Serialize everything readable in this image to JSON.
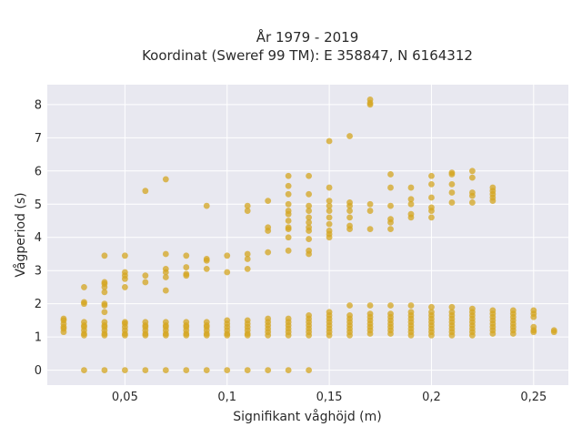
{
  "chart_data": {
    "type": "scatter",
    "title": "År 1979 - 2019",
    "subtitle": "Koordinat (Sweref 99 TM): E 358847, N 6164312",
    "xlabel": "Signifikant våghöjd (m)",
    "ylabel": "Vågperiod (s)",
    "xlim": [
      0.012,
      0.267
    ],
    "ylim": [
      -0.45,
      8.6
    ],
    "x_ticks": [
      0.05,
      0.1,
      0.15,
      0.2,
      0.25
    ],
    "x_tick_labels": [
      "0,05",
      "0,1",
      "0,15",
      "0,2",
      "0,25"
    ],
    "y_ticks": [
      0,
      1,
      2,
      3,
      4,
      5,
      6,
      7,
      8
    ],
    "y_tick_labels": [
      "0",
      "1",
      "2",
      "3",
      "4",
      "5",
      "6",
      "7",
      "8"
    ],
    "grid": true,
    "background": "#e8e8f0",
    "marker_color": "#d4a520",
    "series": [
      {
        "points": [
          [
            0.02,
            1.55
          ],
          [
            0.02,
            1.5
          ],
          [
            0.02,
            1.4
          ],
          [
            0.02,
            1.3
          ],
          [
            0.02,
            1.25
          ],
          [
            0.02,
            1.15
          ],
          [
            0.03,
            1.45
          ],
          [
            0.03,
            1.35
          ],
          [
            0.03,
            1.3
          ],
          [
            0.03,
            1.2
          ],
          [
            0.03,
            1.1
          ],
          [
            0.03,
            1.05
          ],
          [
            0.03,
            2.05
          ],
          [
            0.03,
            2.0
          ],
          [
            0.03,
            2.5
          ],
          [
            0.03,
            0
          ],
          [
            0.04,
            1.45
          ],
          [
            0.04,
            1.35
          ],
          [
            0.04,
            1.3
          ],
          [
            0.04,
            1.2
          ],
          [
            0.04,
            1.1
          ],
          [
            0.04,
            1.05
          ],
          [
            0.04,
            1.95
          ],
          [
            0.04,
            2.0
          ],
          [
            0.04,
            1.75
          ],
          [
            0.04,
            2.5
          ],
          [
            0.04,
            2.6
          ],
          [
            0.04,
            2.65
          ],
          [
            0.04,
            2.35
          ],
          [
            0.04,
            3.45
          ],
          [
            0.04,
            0
          ],
          [
            0.05,
            1.45
          ],
          [
            0.05,
            1.4
          ],
          [
            0.05,
            1.3
          ],
          [
            0.05,
            1.2
          ],
          [
            0.05,
            1.1
          ],
          [
            0.05,
            1.05
          ],
          [
            0.05,
            2.5
          ],
          [
            0.05,
            2.75
          ],
          [
            0.05,
            2.85
          ],
          [
            0.05,
            2.95
          ],
          [
            0.05,
            3.45
          ],
          [
            0.05,
            0
          ],
          [
            0.06,
            1.45
          ],
          [
            0.06,
            1.35
          ],
          [
            0.06,
            1.3
          ],
          [
            0.06,
            1.2
          ],
          [
            0.06,
            1.1
          ],
          [
            0.06,
            1.05
          ],
          [
            0.06,
            2.65
          ],
          [
            0.06,
            2.85
          ],
          [
            0.06,
            5.4
          ],
          [
            0.06,
            0
          ],
          [
            0.07,
            1.45
          ],
          [
            0.07,
            1.35
          ],
          [
            0.07,
            1.3
          ],
          [
            0.07,
            1.2
          ],
          [
            0.07,
            1.1
          ],
          [
            0.07,
            1.05
          ],
          [
            0.07,
            2.4
          ],
          [
            0.07,
            2.8
          ],
          [
            0.07,
            2.95
          ],
          [
            0.07,
            3.05
          ],
          [
            0.07,
            3.5
          ],
          [
            0.07,
            5.75
          ],
          [
            0.07,
            0
          ],
          [
            0.08,
            1.45
          ],
          [
            0.08,
            1.35
          ],
          [
            0.08,
            1.3
          ],
          [
            0.08,
            1.2
          ],
          [
            0.08,
            1.1
          ],
          [
            0.08,
            1.05
          ],
          [
            0.08,
            2.9
          ],
          [
            0.08,
            2.85
          ],
          [
            0.08,
            3.1
          ],
          [
            0.08,
            3.45
          ],
          [
            0.08,
            0
          ],
          [
            0.09,
            1.45
          ],
          [
            0.09,
            1.35
          ],
          [
            0.09,
            1.3
          ],
          [
            0.09,
            1.2
          ],
          [
            0.09,
            1.1
          ],
          [
            0.09,
            1.05
          ],
          [
            0.09,
            3.05
          ],
          [
            0.09,
            3.3
          ],
          [
            0.09,
            3.35
          ],
          [
            0.09,
            4.95
          ],
          [
            0.09,
            0
          ],
          [
            0.1,
            1.5
          ],
          [
            0.1,
            1.4
          ],
          [
            0.1,
            1.3
          ],
          [
            0.1,
            1.2
          ],
          [
            0.1,
            1.1
          ],
          [
            0.1,
            1.05
          ],
          [
            0.1,
            2.95
          ],
          [
            0.1,
            3.45
          ],
          [
            0.1,
            0
          ],
          [
            0.11,
            1.5
          ],
          [
            0.11,
            1.4
          ],
          [
            0.11,
            1.3
          ],
          [
            0.11,
            1.2
          ],
          [
            0.11,
            1.1
          ],
          [
            0.11,
            1.05
          ],
          [
            0.11,
            3.05
          ],
          [
            0.11,
            3.35
          ],
          [
            0.11,
            3.5
          ],
          [
            0.11,
            4.8
          ],
          [
            0.11,
            4.95
          ],
          [
            0.11,
            0
          ],
          [
            0.12,
            1.55
          ],
          [
            0.12,
            1.45
          ],
          [
            0.12,
            1.35
          ],
          [
            0.12,
            1.25
          ],
          [
            0.12,
            1.15
          ],
          [
            0.12,
            1.05
          ],
          [
            0.12,
            3.55
          ],
          [
            0.12,
            4.2
          ],
          [
            0.12,
            4.3
          ],
          [
            0.12,
            5.1
          ],
          [
            0.12,
            0
          ],
          [
            0.13,
            1.55
          ],
          [
            0.13,
            1.45
          ],
          [
            0.13,
            1.35
          ],
          [
            0.13,
            1.25
          ],
          [
            0.13,
            1.15
          ],
          [
            0.13,
            1.05
          ],
          [
            0.13,
            3.6
          ],
          [
            0.13,
            4.0
          ],
          [
            0.13,
            4.25
          ],
          [
            0.13,
            4.3
          ],
          [
            0.13,
            4.5
          ],
          [
            0.13,
            4.7
          ],
          [
            0.13,
            4.8
          ],
          [
            0.13,
            5.0
          ],
          [
            0.13,
            5.3
          ],
          [
            0.13,
            5.55
          ],
          [
            0.13,
            5.85
          ],
          [
            0.13,
            0
          ],
          [
            0.14,
            1.65
          ],
          [
            0.14,
            1.55
          ],
          [
            0.14,
            1.45
          ],
          [
            0.14,
            1.35
          ],
          [
            0.14,
            1.25
          ],
          [
            0.14,
            1.15
          ],
          [
            0.14,
            1.05
          ],
          [
            0.14,
            3.5
          ],
          [
            0.14,
            3.6
          ],
          [
            0.14,
            3.95
          ],
          [
            0.14,
            4.2
          ],
          [
            0.14,
            4.3
          ],
          [
            0.14,
            4.45
          ],
          [
            0.14,
            4.6
          ],
          [
            0.14,
            4.8
          ],
          [
            0.14,
            4.95
          ],
          [
            0.14,
            5.3
          ],
          [
            0.14,
            5.85
          ],
          [
            0.14,
            0
          ],
          [
            0.15,
            1.75
          ],
          [
            0.15,
            1.65
          ],
          [
            0.15,
            1.55
          ],
          [
            0.15,
            1.45
          ],
          [
            0.15,
            1.35
          ],
          [
            0.15,
            1.25
          ],
          [
            0.15,
            1.15
          ],
          [
            0.15,
            1.05
          ],
          [
            0.15,
            4.0
          ],
          [
            0.15,
            4.1
          ],
          [
            0.15,
            4.2
          ],
          [
            0.15,
            4.4
          ],
          [
            0.15,
            4.6
          ],
          [
            0.15,
            4.8
          ],
          [
            0.15,
            4.95
          ],
          [
            0.15,
            5.1
          ],
          [
            0.15,
            5.5
          ],
          [
            0.15,
            6.9
          ],
          [
            0.16,
            1.95
          ],
          [
            0.16,
            1.65
          ],
          [
            0.16,
            1.55
          ],
          [
            0.16,
            1.45
          ],
          [
            0.16,
            1.35
          ],
          [
            0.16,
            1.25
          ],
          [
            0.16,
            1.15
          ],
          [
            0.16,
            1.05
          ],
          [
            0.16,
            4.25
          ],
          [
            0.16,
            4.35
          ],
          [
            0.16,
            4.6
          ],
          [
            0.16,
            4.8
          ],
          [
            0.16,
            4.95
          ],
          [
            0.16,
            5.05
          ],
          [
            0.16,
            7.05
          ],
          [
            0.17,
            1.95
          ],
          [
            0.17,
            1.7
          ],
          [
            0.17,
            1.6
          ],
          [
            0.17,
            1.5
          ],
          [
            0.17,
            1.4
          ],
          [
            0.17,
            1.3
          ],
          [
            0.17,
            1.2
          ],
          [
            0.17,
            1.1
          ],
          [
            0.17,
            4.25
          ],
          [
            0.17,
            4.8
          ],
          [
            0.17,
            5.0
          ],
          [
            0.17,
            8.0
          ],
          [
            0.17,
            8.05
          ],
          [
            0.17,
            8.15
          ],
          [
            0.18,
            1.95
          ],
          [
            0.18,
            1.7
          ],
          [
            0.18,
            1.6
          ],
          [
            0.18,
            1.5
          ],
          [
            0.18,
            1.4
          ],
          [
            0.18,
            1.3
          ],
          [
            0.18,
            1.2
          ],
          [
            0.18,
            1.1
          ],
          [
            0.18,
            4.25
          ],
          [
            0.18,
            4.45
          ],
          [
            0.18,
            4.55
          ],
          [
            0.18,
            4.95
          ],
          [
            0.18,
            5.5
          ],
          [
            0.18,
            5.9
          ],
          [
            0.19,
            1.95
          ],
          [
            0.19,
            1.75
          ],
          [
            0.19,
            1.65
          ],
          [
            0.19,
            1.55
          ],
          [
            0.19,
            1.45
          ],
          [
            0.19,
            1.35
          ],
          [
            0.19,
            1.25
          ],
          [
            0.19,
            1.15
          ],
          [
            0.19,
            1.05
          ],
          [
            0.19,
            4.6
          ],
          [
            0.19,
            4.7
          ],
          [
            0.19,
            5.0
          ],
          [
            0.19,
            5.15
          ],
          [
            0.19,
            5.5
          ],
          [
            0.2,
            1.9
          ],
          [
            0.2,
            1.75
          ],
          [
            0.2,
            1.65
          ],
          [
            0.2,
            1.55
          ],
          [
            0.2,
            1.45
          ],
          [
            0.2,
            1.35
          ],
          [
            0.2,
            1.25
          ],
          [
            0.2,
            1.15
          ],
          [
            0.2,
            1.05
          ],
          [
            0.2,
            4.6
          ],
          [
            0.2,
            4.8
          ],
          [
            0.2,
            4.9
          ],
          [
            0.2,
            5.2
          ],
          [
            0.2,
            5.6
          ],
          [
            0.2,
            5.85
          ],
          [
            0.21,
            1.9
          ],
          [
            0.21,
            1.75
          ],
          [
            0.21,
            1.65
          ],
          [
            0.21,
            1.55
          ],
          [
            0.21,
            1.45
          ],
          [
            0.21,
            1.35
          ],
          [
            0.21,
            1.25
          ],
          [
            0.21,
            1.15
          ],
          [
            0.21,
            1.05
          ],
          [
            0.21,
            5.05
          ],
          [
            0.21,
            5.35
          ],
          [
            0.21,
            5.6
          ],
          [
            0.21,
            5.9
          ],
          [
            0.21,
            5.95
          ],
          [
            0.22,
            1.85
          ],
          [
            0.22,
            1.75
          ],
          [
            0.22,
            1.65
          ],
          [
            0.22,
            1.55
          ],
          [
            0.22,
            1.45
          ],
          [
            0.22,
            1.35
          ],
          [
            0.22,
            1.25
          ],
          [
            0.22,
            1.15
          ],
          [
            0.22,
            1.05
          ],
          [
            0.22,
            5.05
          ],
          [
            0.22,
            5.25
          ],
          [
            0.22,
            5.35
          ],
          [
            0.22,
            5.8
          ],
          [
            0.22,
            6.0
          ],
          [
            0.23,
            1.8
          ],
          [
            0.23,
            1.7
          ],
          [
            0.23,
            1.6
          ],
          [
            0.23,
            1.5
          ],
          [
            0.23,
            1.4
          ],
          [
            0.23,
            1.3
          ],
          [
            0.23,
            1.2
          ],
          [
            0.23,
            1.1
          ],
          [
            0.23,
            5.1
          ],
          [
            0.23,
            5.2
          ],
          [
            0.23,
            5.3
          ],
          [
            0.23,
            5.4
          ],
          [
            0.23,
            5.5
          ],
          [
            0.24,
            1.8
          ],
          [
            0.24,
            1.7
          ],
          [
            0.24,
            1.6
          ],
          [
            0.24,
            1.5
          ],
          [
            0.24,
            1.4
          ],
          [
            0.24,
            1.3
          ],
          [
            0.24,
            1.2
          ],
          [
            0.24,
            1.1
          ],
          [
            0.25,
            1.8
          ],
          [
            0.25,
            1.7
          ],
          [
            0.25,
            1.6
          ],
          [
            0.25,
            1.3
          ],
          [
            0.25,
            1.2
          ],
          [
            0.25,
            1.15
          ],
          [
            0.26,
            1.2
          ],
          [
            0.26,
            1.15
          ]
        ]
      }
    ]
  }
}
